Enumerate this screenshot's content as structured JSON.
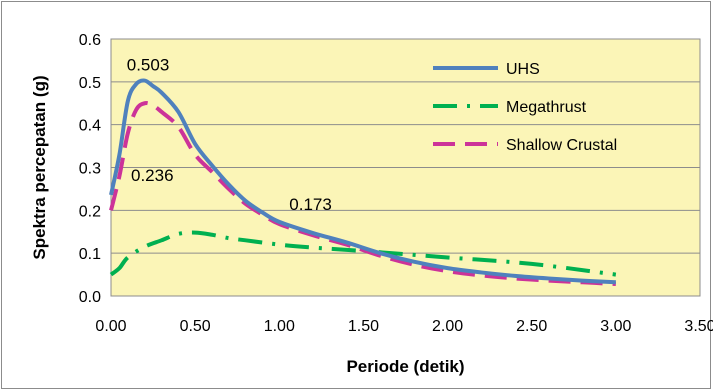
{
  "chart_data": {
    "type": "line",
    "title": "",
    "xlabel": "Periode (detik)",
    "ylabel": "Spektra percepatan (g)",
    "xlim": [
      0,
      3.5
    ],
    "ylim": [
      0,
      0.6
    ],
    "x_ticks": [
      "0.00",
      "0.50",
      "1.00",
      "1.50",
      "2.00",
      "2.50",
      "3.00",
      "3.50"
    ],
    "y_ticks": [
      "0.0",
      "0.1",
      "0.2",
      "0.3",
      "0.4",
      "0.5",
      "0.6"
    ],
    "grid": "horizontal",
    "legend_position": "top-right",
    "background_color": "#fbf5b7",
    "series": [
      {
        "name": "UHS",
        "color": "#4f81bd",
        "style": "solid",
        "x": [
          0,
          0.05,
          0.1,
          0.15,
          0.2,
          0.25,
          0.3,
          0.4,
          0.5,
          0.6,
          0.7,
          0.8,
          0.9,
          1.0,
          1.2,
          1.4,
          1.6,
          1.8,
          2.0,
          2.2,
          2.4,
          2.6,
          2.8,
          3.0
        ],
        "y": [
          0.236,
          0.33,
          0.455,
          0.495,
          0.503,
          0.49,
          0.475,
          0.43,
          0.355,
          0.305,
          0.26,
          0.222,
          0.195,
          0.173,
          0.147,
          0.125,
          0.1,
          0.08,
          0.065,
          0.055,
          0.047,
          0.041,
          0.036,
          0.032
        ]
      },
      {
        "name": "Megathrust",
        "color": "#00b050",
        "style": "dash-dot",
        "x": [
          0,
          0.05,
          0.1,
          0.2,
          0.3,
          0.4,
          0.5,
          0.6,
          0.7,
          0.8,
          1.0,
          1.2,
          1.5,
          2.0,
          2.5,
          3.0
        ],
        "y": [
          0.05,
          0.065,
          0.09,
          0.115,
          0.13,
          0.145,
          0.148,
          0.143,
          0.135,
          0.13,
          0.12,
          0.113,
          0.105,
          0.09,
          0.075,
          0.05
        ]
      },
      {
        "name": "Shallow Crustal",
        "color": "#cc3399",
        "style": "dashed",
        "x": [
          0,
          0.05,
          0.1,
          0.15,
          0.2,
          0.25,
          0.3,
          0.4,
          0.5,
          0.6,
          0.7,
          0.8,
          0.9,
          1.0,
          1.2,
          1.4,
          1.6,
          1.8,
          2.0,
          2.2,
          2.4,
          2.6,
          2.8,
          3.0
        ],
        "y": [
          0.2,
          0.28,
          0.38,
          0.435,
          0.45,
          0.445,
          0.43,
          0.395,
          0.33,
          0.29,
          0.25,
          0.215,
          0.19,
          0.168,
          0.142,
          0.12,
          0.094,
          0.073,
          0.058,
          0.048,
          0.041,
          0.036,
          0.032,
          0.028
        ]
      }
    ],
    "annotations": [
      {
        "text": "0.503",
        "x": 0.22,
        "y": 0.503
      },
      {
        "text": "0.236",
        "x": 0.0,
        "y": 0.236
      },
      {
        "text": "0.173",
        "x": 1.0,
        "y": 0.173
      }
    ]
  }
}
